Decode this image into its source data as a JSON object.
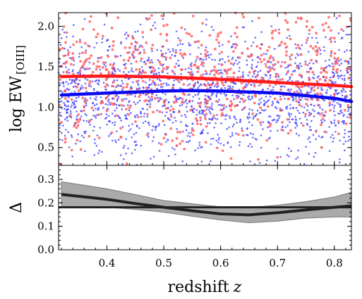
{
  "chart_data": [
    {
      "type": "scatter",
      "panel": "top",
      "ylabel": {
        "main": "log EW",
        "subscript": "[OIII]"
      },
      "xlim": [
        0.315,
        0.83
      ],
      "ylim": [
        0.28,
        2.17
      ],
      "yticks": [
        0.5,
        1.0,
        1.5,
        2.0
      ],
      "yticklabels": [
        "0.5",
        "1.0",
        "1.5",
        "2.0"
      ],
      "series": [
        {
          "color": "#ff5a5a",
          "trend_x": [
            0.32,
            0.4,
            0.5,
            0.6,
            0.7,
            0.8,
            0.83
          ],
          "trend_y": [
            1.38,
            1.385,
            1.375,
            1.345,
            1.305,
            1.27,
            1.255
          ],
          "scatter_x_range": [
            0.315,
            0.83
          ],
          "scatter_y_center": 1.38,
          "scatter_y_spread": 0.42,
          "scatter_count": 700
        },
        {
          "color": "#3a3aff",
          "trend_x": [
            0.32,
            0.4,
            0.5,
            0.55,
            0.6,
            0.7,
            0.8,
            0.83
          ],
          "trend_y": [
            1.15,
            1.175,
            1.2,
            1.205,
            1.2,
            1.175,
            1.11,
            1.07
          ],
          "scatter_x_range": [
            0.315,
            0.83
          ],
          "scatter_y_center": 1.15,
          "scatter_y_spread": 0.38,
          "scatter_count": 1600
        }
      ],
      "trend_colors": [
        "#ff1a1a",
        "#0a0aee"
      ]
    },
    {
      "type": "line",
      "panel": "bottom",
      "xlabel": {
        "main": "redshift",
        "italic": "z"
      },
      "ylabel": "Δ",
      "xlim": [
        0.315,
        0.83
      ],
      "ylim": [
        0.0,
        0.36
      ],
      "xticks": [
        0.4,
        0.5,
        0.6,
        0.7,
        0.8
      ],
      "xticklabels": [
        "0.4",
        "0.5",
        "0.6",
        "0.7",
        "0.8"
      ],
      "yticks": [
        0.0,
        0.1,
        0.2,
        0.3
      ],
      "yticklabels": [
        "0.0",
        "0.1",
        "0.2",
        "0.3"
      ],
      "reference_value": 0.181,
      "delta": {
        "x": [
          0.32,
          0.4,
          0.45,
          0.5,
          0.55,
          0.6,
          0.65,
          0.7,
          0.75,
          0.8,
          0.83
        ],
        "y": [
          0.236,
          0.215,
          0.197,
          0.181,
          0.166,
          0.153,
          0.149,
          0.158,
          0.17,
          0.181,
          0.187
        ],
        "lower": [
          0.181,
          0.181,
          0.172,
          0.16,
          0.143,
          0.127,
          0.115,
          0.122,
          0.135,
          0.14,
          0.14
        ],
        "upper": [
          0.29,
          0.26,
          0.235,
          0.21,
          0.196,
          0.183,
          0.18,
          0.19,
          0.205,
          0.225,
          0.245
        ]
      },
      "colors": {
        "line": "#222222",
        "band": "#aaaaaa",
        "band_edge": "#777777"
      }
    }
  ]
}
